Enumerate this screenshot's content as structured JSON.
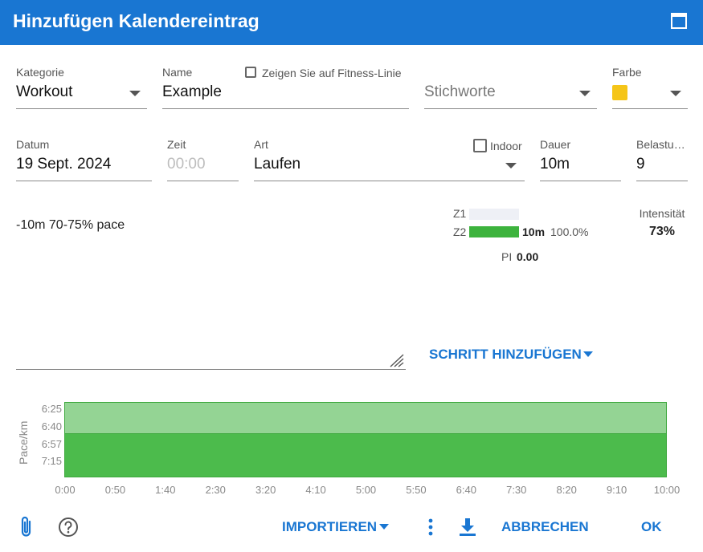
{
  "dialog": {
    "title": "Hinzufügen Kalendereintrag"
  },
  "form": {
    "kategorie": {
      "label": "Kategorie",
      "value": "Workout"
    },
    "name": {
      "label": "Name",
      "value": "Example"
    },
    "fitness_line": {
      "label": "Zeigen Sie auf Fitness-Linie",
      "checked": false
    },
    "stichworte": {
      "placeholder": "Stichworte"
    },
    "farbe": {
      "label": "Farbe",
      "color": "#f5c518"
    },
    "datum": {
      "label": "Datum",
      "value": "19 Sept. 2024"
    },
    "zeit": {
      "label": "Zeit",
      "placeholder": "00:00"
    },
    "art": {
      "label": "Art",
      "value": "Laufen"
    },
    "indoor": {
      "label": "Indoor",
      "checked": false
    },
    "dauer": {
      "label": "Dauer",
      "value": "10m"
    },
    "belastung": {
      "label": "Belastu…",
      "value": "9"
    },
    "description": "-10m 70-75% pace"
  },
  "zones": {
    "z1": {
      "label": "Z1",
      "fraction": 0
    },
    "z2": {
      "label": "Z2",
      "fraction": 1,
      "duration": "10m",
      "percent": "100.0%"
    },
    "pi_label": "PI",
    "pi_value": "0.00",
    "intensity_label": "Intensität",
    "intensity_value": "73%"
  },
  "actions": {
    "add_step": "SCHRITT HINZUFÜGEN",
    "import": "IMPORTIEREN",
    "cancel": "ABBRECHEN",
    "ok": "OK"
  },
  "chart_data": {
    "type": "area",
    "ylabel": "Pace/km",
    "yticks": [
      "6:25",
      "6:40",
      "6:57",
      "7:15"
    ],
    "xticks": [
      "0:00",
      "0:50",
      "1:40",
      "2:30",
      "3:20",
      "4:10",
      "5:00",
      "5:50",
      "6:40",
      "7:30",
      "8:20",
      "9:10",
      "10:00"
    ],
    "x_range_min": [
      0,
      10
    ],
    "series": [
      {
        "x": [
          0,
          10
        ],
        "y_pace_upper": "6:25",
        "y_pace_lower": "6:57",
        "color": "#94d494"
      },
      {
        "x": [
          0,
          10
        ],
        "y_pace_upper": "6:57",
        "y_pace_lower": "7:15+",
        "color": "#4cbb4c"
      }
    ],
    "colors": {
      "light": "#94d494",
      "dark": "#4cbb4c",
      "border": "#3da83d"
    }
  }
}
